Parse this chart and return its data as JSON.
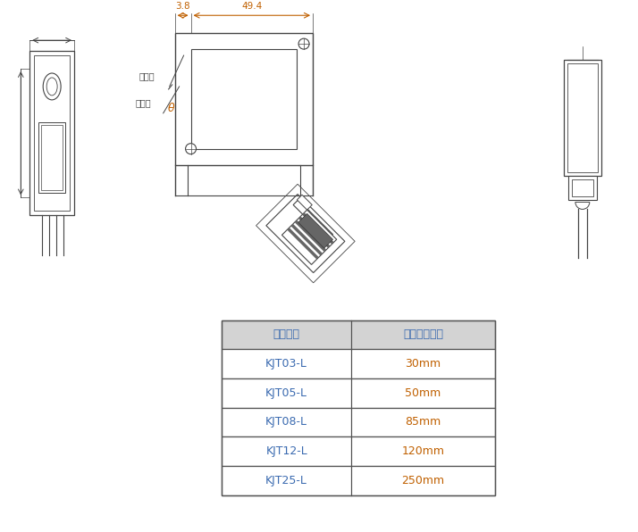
{
  "bg_color": "#ffffff",
  "table_header_bg": "#d3d3d3",
  "table_col1_header": "型号名称",
  "table_col2_header": "测定中心距离",
  "table_rows": [
    [
      "KJT03-L",
      "30mm"
    ],
    [
      "KJT05-L",
      "50mm"
    ],
    [
      "KJT08-L",
      "85mm"
    ],
    [
      "KJT12-L",
      "120mm"
    ],
    [
      "KJT25-L",
      "250mm"
    ]
  ],
  "table_model_color": "#3a6ab0",
  "table_value_color": "#c06000",
  "table_header_color": "#3a6ab0",
  "dim_text_38": "3.8",
  "dim_text_494": "49.4",
  "label_tou": "投光轴",
  "label_shou": "受光轴",
  "label_theta": "θ",
  "line_color": "#444444",
  "dim_color": "#c06000"
}
